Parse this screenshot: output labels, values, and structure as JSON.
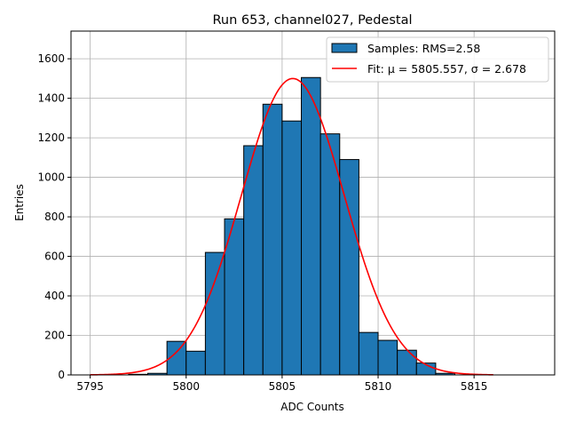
{
  "chart_data": {
    "type": "bar",
    "title": "Run 653, channel027, Pedestal",
    "xlabel": "ADC Counts",
    "ylabel": "Entries",
    "xlim": [
      5794,
      5819.2
    ],
    "ylim": [
      0,
      1740
    ],
    "grid": true,
    "xticks": [
      5795,
      5800,
      5805,
      5810,
      5815
    ],
    "yticks": [
      0,
      200,
      400,
      600,
      800,
      1000,
      1200,
      1400,
      1600
    ],
    "bin_width": 1,
    "bins": [
      {
        "left": 5797,
        "value": 3
      },
      {
        "left": 5798,
        "value": 8
      },
      {
        "left": 5799,
        "value": 170
      },
      {
        "left": 5800,
        "value": 120
      },
      {
        "left": 5801,
        "value": 620
      },
      {
        "left": 5802,
        "value": 790
      },
      {
        "left": 5803,
        "value": 1160
      },
      {
        "left": 5804,
        "value": 1370
      },
      {
        "left": 5805,
        "value": 1285
      },
      {
        "left": 5806,
        "value": 1505
      },
      {
        "left": 5807,
        "value": 1220
      },
      {
        "left": 5808,
        "value": 1090
      },
      {
        "left": 5809,
        "value": 215
      },
      {
        "left": 5810,
        "value": 175
      },
      {
        "left": 5811,
        "value": 125
      },
      {
        "left": 5812,
        "value": 60
      },
      {
        "left": 5813,
        "value": 8
      }
    ],
    "fit": {
      "mu": 5805.557,
      "sigma": 2.678,
      "amplitude": 1500,
      "x_range": [
        5795,
        5816
      ]
    },
    "legend": {
      "placement": "top-right",
      "entries": [
        "Samples: RMS=2.58",
        "Fit: μ = 5805.557, σ = 2.678"
      ]
    },
    "colors": {
      "bar": "#1f77b4",
      "fit": "#ff0000",
      "grid": "#b0b0b0"
    }
  }
}
